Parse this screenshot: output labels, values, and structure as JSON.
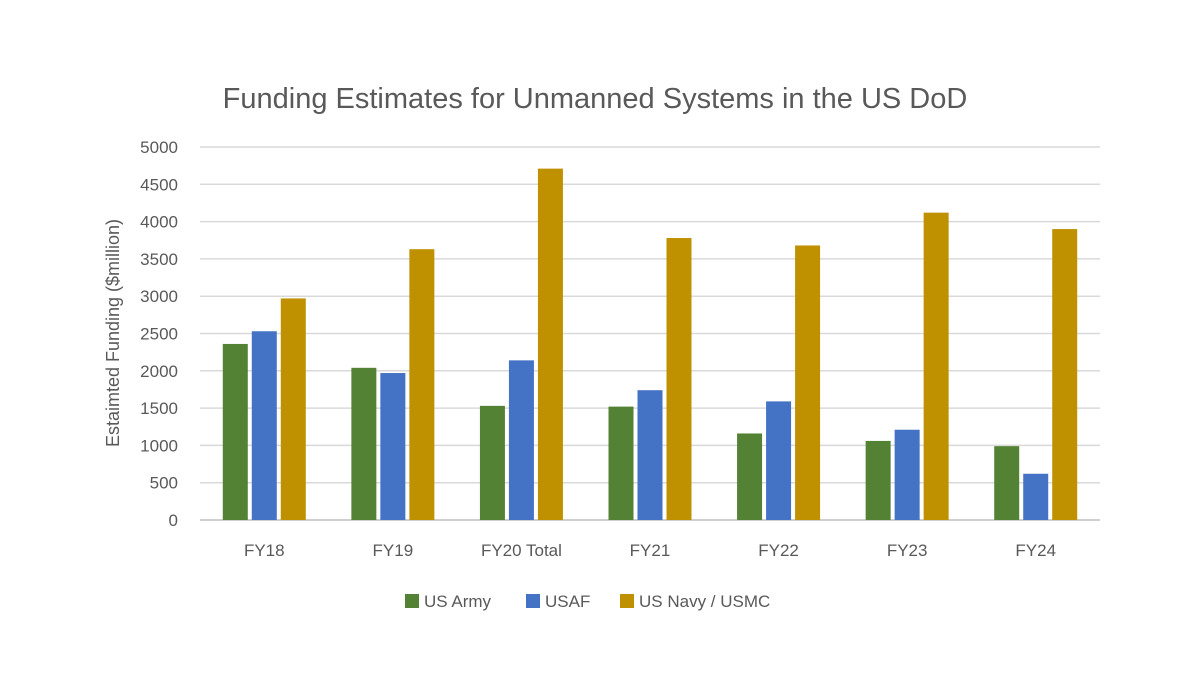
{
  "chart_data": {
    "type": "bar",
    "title": "Funding Estimates for Unmanned Systems in the US DoD",
    "ylabel": "Estaimted Funding ($million)",
    "xlabel": "",
    "categories": [
      "FY18",
      "FY19",
      "FY20 Total",
      "FY21",
      "FY22",
      "FY23",
      "FY24"
    ],
    "ylim": [
      0,
      5000
    ],
    "yticks": [
      0,
      500,
      1000,
      1500,
      2000,
      2500,
      3000,
      3500,
      4000,
      4500,
      5000
    ],
    "grid": true,
    "legend_position": "bottom",
    "series": [
      {
        "name": "US Army",
        "color": "#548235",
        "values": [
          2360,
          2040,
          1530,
          1520,
          1160,
          1060,
          990
        ]
      },
      {
        "name": "USAF",
        "color": "#4472C4",
        "values": [
          2530,
          1970,
          2140,
          1740,
          1590,
          1210,
          620
        ]
      },
      {
        "name": "US Navy / USMC",
        "color": "#BF9000",
        "values": [
          2970,
          3630,
          4710,
          3780,
          3680,
          4120,
          3900
        ]
      }
    ]
  }
}
